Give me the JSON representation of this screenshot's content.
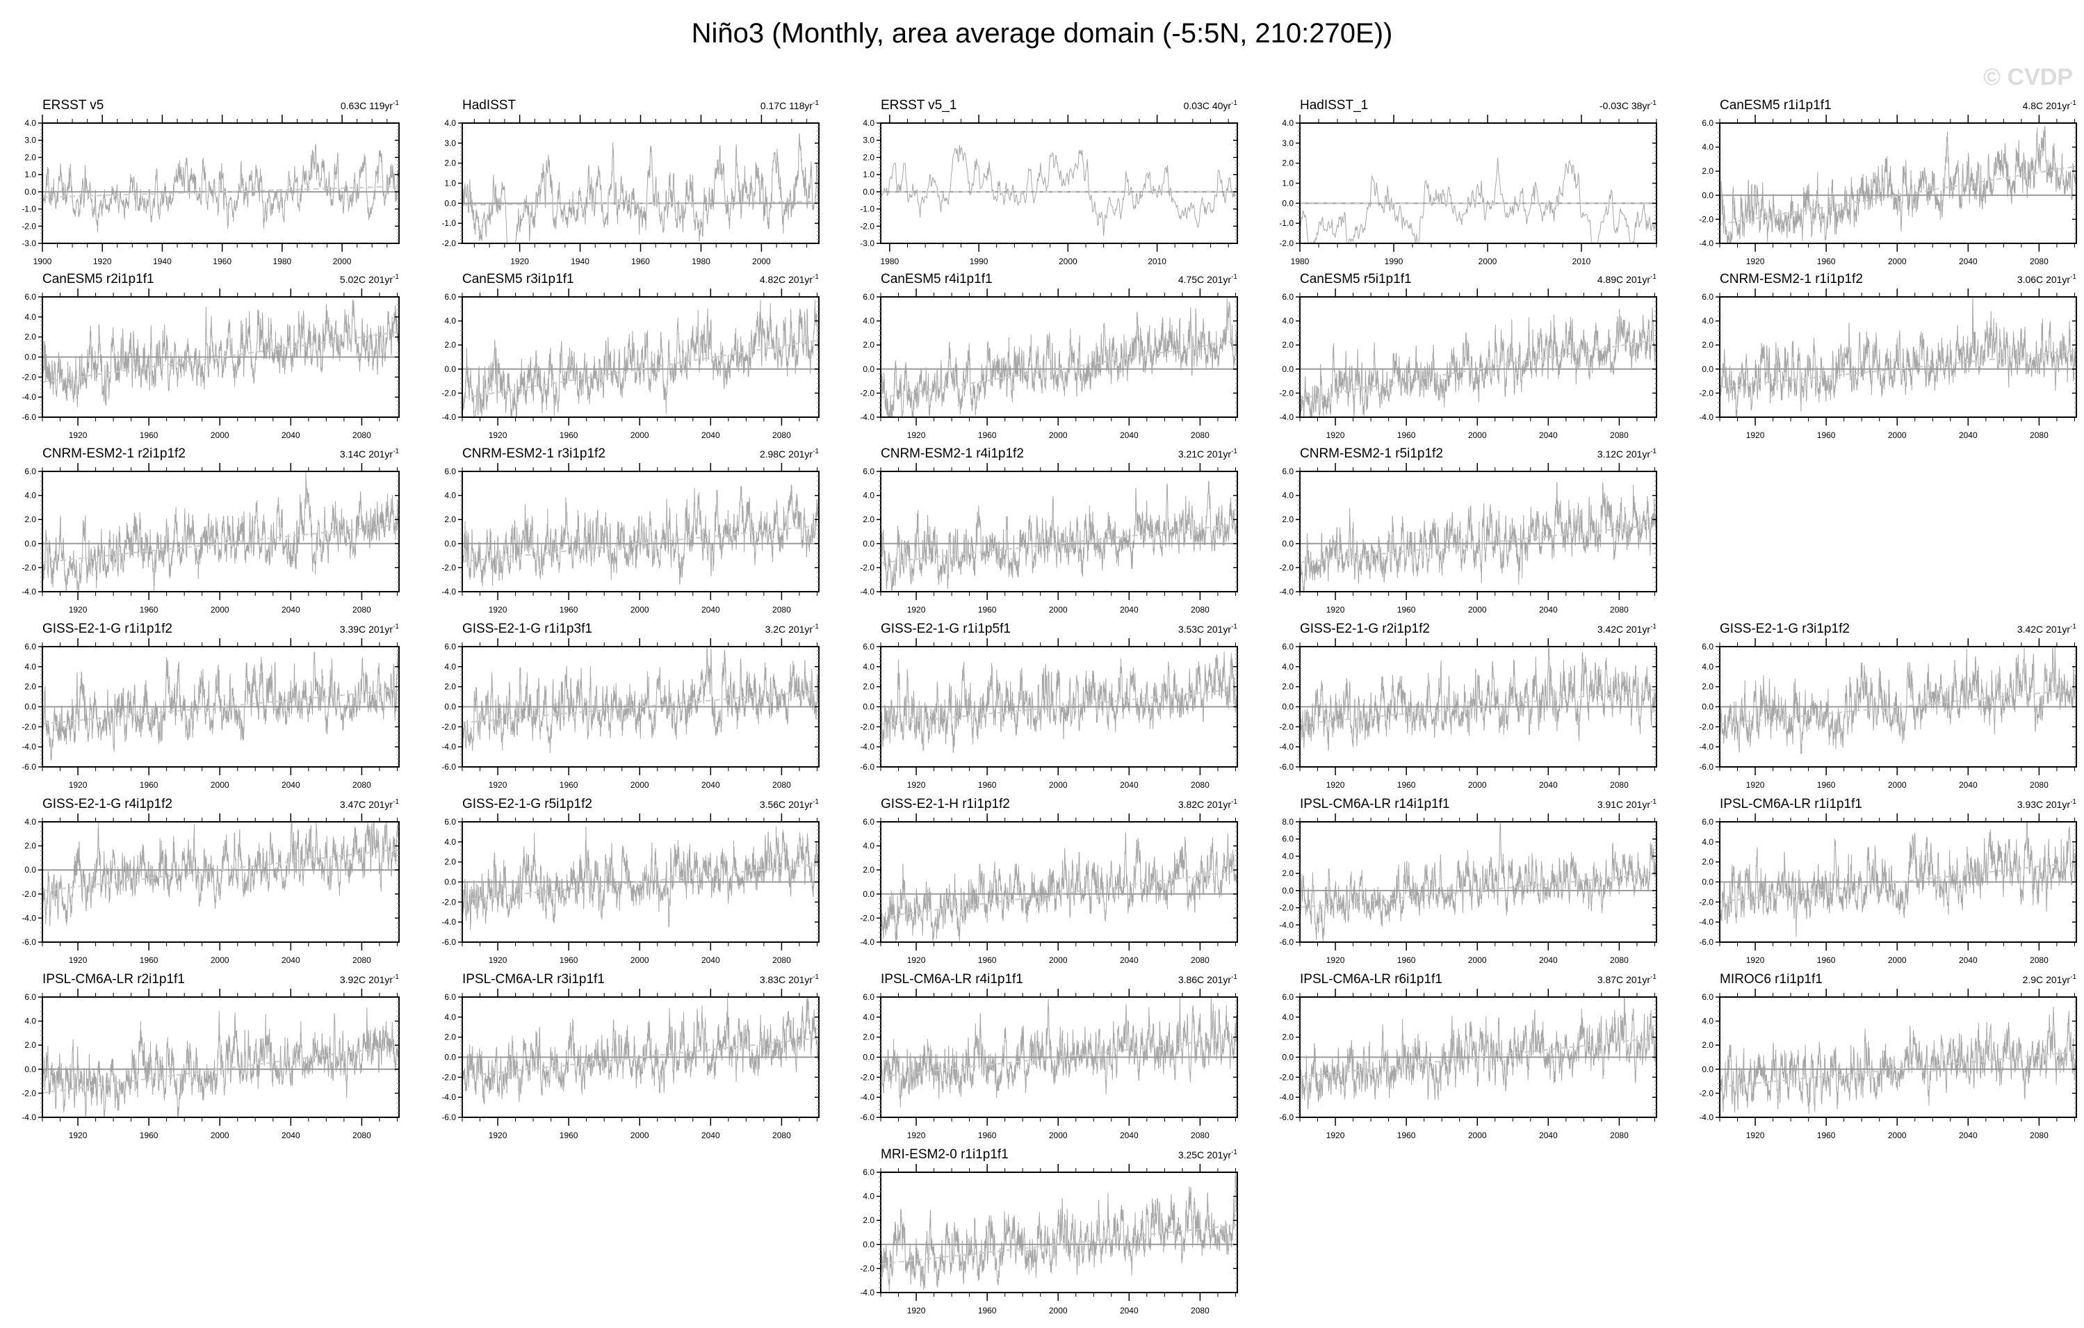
{
  "header": {
    "title": "Niño3 (Monthly, area average domain (-5:5N, 210:270E))",
    "copyright": "© CVDP"
  },
  "chart_data": {
    "type": "line",
    "title": "Niño3 (Monthly, area average domain (-5:5N, 210:270E))",
    "xlabel": "",
    "ylabel": "",
    "grid": false,
    "trend_unit_exponent": "-1",
    "colors": {
      "series": "#a6a6a6",
      "zero_line": "#9a9a9a",
      "trend_line": "#cccccc",
      "axes": "#000000"
    },
    "xtick_sets": {
      "model": [
        "1920",
        "1960",
        "2000",
        "2040",
        "2080"
      ],
      "ersst": [
        "1900",
        "1920",
        "1940",
        "1960",
        "1980",
        "2000"
      ],
      "hadisst": [
        "1920",
        "1940",
        "1960",
        "1980",
        "2000"
      ],
      "ersst_1": [
        "1980",
        "1990",
        "2000",
        "2010"
      ],
      "hadisst_1": [
        "1980",
        "1990",
        "2000",
        "2010"
      ]
    },
    "xlims": {
      "model": [
        1900,
        2101
      ],
      "ersst": [
        1900,
        2019
      ],
      "hadisst": [
        1901,
        2019
      ],
      "ersst_1": [
        1979,
        2019
      ],
      "hadisst_1": [
        1980,
        2018
      ]
    },
    "ytick_sets": {
      "o3_4": [
        "-3.0",
        "-2.0",
        "-1.0",
        "0.0",
        "1.0",
        "2.0",
        "3.0",
        "4.0"
      ],
      "o2_4": [
        "-2.0",
        "-1.0",
        "0.0",
        "1.0",
        "2.0",
        "3.0",
        "4.0"
      ],
      "m4_6": [
        "-4.0",
        "-2.0",
        "0.0",
        "2.0",
        "4.0",
        "6.0"
      ],
      "m6_6": [
        "-6.0",
        "-4.0",
        "-2.0",
        "0.0",
        "2.0",
        "4.0",
        "6.0"
      ],
      "m6_4": [
        "-6.0",
        "-4.0",
        "-2.0",
        "0.0",
        "2.0",
        "4.0"
      ],
      "m6_8": [
        "-6.0",
        "-4.0",
        "-2.0",
        "0.0",
        "2.0",
        "4.0",
        "6.0",
        "8.0"
      ]
    },
    "panels": [
      {
        "title": "ERSST v5",
        "trend": "0.63C",
        "years": "119yr",
        "xset": "ersst",
        "yset": "o3_4",
        "trend_change": 0.63
      },
      {
        "title": "HadISST",
        "trend": "0.17C",
        "years": "118yr",
        "xset": "hadisst",
        "yset": "o2_4",
        "trend_change": 0.17
      },
      {
        "title": "ERSST v5_1",
        "trend": "0.03C",
        "years": "40yr",
        "xset": "ersst_1",
        "yset": "o3_4",
        "trend_change": 0.03
      },
      {
        "title": "HadISST_1",
        "trend": "-0.03C",
        "years": "38yr",
        "xset": "hadisst_1",
        "yset": "o2_4",
        "trend_change": -0.03
      },
      {
        "title": "CanESM5 r1i1p1f1",
        "trend": "4.8C",
        "years": "201yr",
        "xset": "model",
        "yset": "m4_6",
        "trend_change": 4.8
      },
      {
        "title": "CanESM5 r2i1p1f1",
        "trend": "5.02C",
        "years": "201yr",
        "xset": "model",
        "yset": "m6_6",
        "trend_change": 5.02
      },
      {
        "title": "CanESM5 r3i1p1f1",
        "trend": "4.82C",
        "years": "201yr",
        "xset": "model",
        "yset": "m4_6",
        "trend_change": 4.82
      },
      {
        "title": "CanESM5 r4i1p1f1",
        "trend": "4.75C",
        "years": "201yr",
        "xset": "model",
        "yset": "m4_6",
        "trend_change": 4.75
      },
      {
        "title": "CanESM5 r5i1p1f1",
        "trend": "4.89C",
        "years": "201yr",
        "xset": "model",
        "yset": "m4_6",
        "trend_change": 4.89
      },
      {
        "title": "CNRM-ESM2-1 r1i1p1f2",
        "trend": "3.06C",
        "years": "201yr",
        "xset": "model",
        "yset": "m4_6",
        "trend_change": 3.06
      },
      {
        "title": "CNRM-ESM2-1 r2i1p1f2",
        "trend": "3.14C",
        "years": "201yr",
        "xset": "model",
        "yset": "m4_6",
        "trend_change": 3.14
      },
      {
        "title": "CNRM-ESM2-1 r3i1p1f2",
        "trend": "2.98C",
        "years": "201yr",
        "xset": "model",
        "yset": "m4_6",
        "trend_change": 2.98
      },
      {
        "title": "CNRM-ESM2-1 r4i1p1f2",
        "trend": "3.21C",
        "years": "201yr",
        "xset": "model",
        "yset": "m4_6",
        "trend_change": 3.21
      },
      {
        "title": "CNRM-ESM2-1 r5i1p1f2",
        "trend": "3.12C",
        "years": "201yr",
        "xset": "model",
        "yset": "m4_6",
        "trend_change": 3.12
      },
      {
        "title": "GISS-E2-1-G r1i1p1f2",
        "trend": "3.39C",
        "years": "201yr",
        "xset": "model",
        "yset": "m6_6",
        "trend_change": 3.39
      },
      {
        "title": "GISS-E2-1-G r1i1p3f1",
        "trend": "3.2C",
        "years": "201yr",
        "xset": "model",
        "yset": "m6_6",
        "trend_change": 3.2
      },
      {
        "title": "GISS-E2-1-G r1i1p5f1",
        "trend": "3.53C",
        "years": "201yr",
        "xset": "model",
        "yset": "m6_6",
        "trend_change": 3.53
      },
      {
        "title": "GISS-E2-1-G r2i1p1f2",
        "trend": "3.42C",
        "years": "201yr",
        "xset": "model",
        "yset": "m6_6",
        "trend_change": 3.42
      },
      {
        "title": "GISS-E2-1-G r3i1p1f2",
        "trend": "3.42C",
        "years": "201yr",
        "xset": "model",
        "yset": "m6_6",
        "trend_change": 3.42
      },
      {
        "title": "GISS-E2-1-G r4i1p1f2",
        "trend": "3.47C",
        "years": "201yr",
        "xset": "model",
        "yset": "m6_4",
        "trend_change": 3.47
      },
      {
        "title": "GISS-E2-1-G r5i1p1f2",
        "trend": "3.56C",
        "years": "201yr",
        "xset": "model",
        "yset": "m6_6",
        "trend_change": 3.56
      },
      {
        "title": "GISS-E2-1-H r1i1p1f2",
        "trend": "3.82C",
        "years": "201yr",
        "xset": "model",
        "yset": "m4_6",
        "trend_change": 3.82
      },
      {
        "title": "IPSL-CM6A-LR r14i1p1f1",
        "trend": "3.91C",
        "years": "201yr",
        "xset": "model",
        "yset": "m6_8",
        "trend_change": 3.91
      },
      {
        "title": "IPSL-CM6A-LR r1i1p1f1",
        "trend": "3.93C",
        "years": "201yr",
        "xset": "model",
        "yset": "m6_6",
        "trend_change": 3.93
      },
      {
        "title": "IPSL-CM6A-LR r2i1p1f1",
        "trend": "3.92C",
        "years": "201yr",
        "xset": "model",
        "yset": "m4_6",
        "trend_change": 3.92
      },
      {
        "title": "IPSL-CM6A-LR r3i1p1f1",
        "trend": "3.83C",
        "years": "201yr",
        "xset": "model",
        "yset": "m6_6",
        "trend_change": 3.83
      },
      {
        "title": "IPSL-CM6A-LR r4i1p1f1",
        "trend": "3.86C",
        "years": "201yr",
        "xset": "model",
        "yset": "m6_6",
        "trend_change": 3.86
      },
      {
        "title": "IPSL-CM6A-LR r6i1p1f1",
        "trend": "3.87C",
        "years": "201yr",
        "xset": "model",
        "yset": "m6_6",
        "trend_change": 3.87
      },
      {
        "title": "MIROC6 r1i1p1f1",
        "trend": "2.9C",
        "years": "201yr",
        "xset": "model",
        "yset": "m4_6",
        "trend_change": 2.9
      },
      {
        "title": "MRI-ESM2-0 r1i1p1f1",
        "trend": "3.25C",
        "years": "201yr",
        "xset": "model",
        "yset": "m4_6",
        "trend_change": 3.25
      }
    ]
  }
}
